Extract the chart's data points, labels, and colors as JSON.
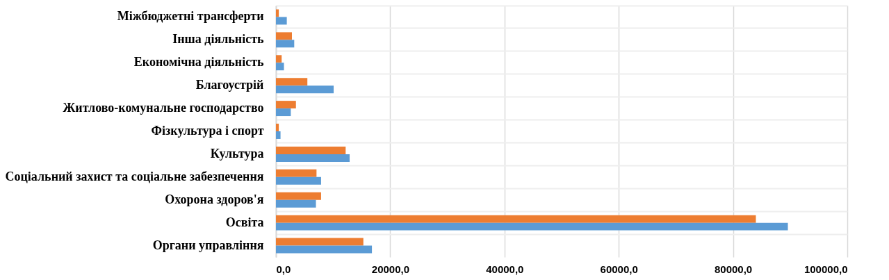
{
  "chart_data": {
    "type": "bar",
    "orientation": "horizontal",
    "categories": [
      "Міжбюджетні трансферти",
      "Інша діяльність",
      "Економічна діяльність",
      "Благоустрій",
      "Житлово-комунальне господарство",
      "Фізкультура і спорт",
      "Культура",
      "Соціальний захист та соціальне забезпечення",
      "Охорона здоров'я",
      "Освіта",
      "Органи управління"
    ],
    "series": [
      {
        "color": "#ed7d31",
        "values": [
          500,
          2800,
          1000,
          5500,
          3500,
          500,
          12200,
          7100,
          7900,
          84000,
          15300
        ]
      },
      {
        "color": "#5b9bd5",
        "values": [
          1900,
          3200,
          1400,
          10100,
          2600,
          800,
          12900,
          7900,
          7000,
          89600,
          16800
        ]
      }
    ],
    "xlim": [
      0,
      100000
    ],
    "xticks": [
      {
        "value": 0,
        "label": "0,0"
      },
      {
        "value": 20000,
        "label": "20000,0"
      },
      {
        "value": 40000,
        "label": "40000,0"
      },
      {
        "value": 60000,
        "label": "60000,0"
      },
      {
        "value": 80000,
        "label": "80000,0"
      },
      {
        "value": 100000,
        "label": "100000,0"
      }
    ],
    "grid": true,
    "legend": false
  }
}
